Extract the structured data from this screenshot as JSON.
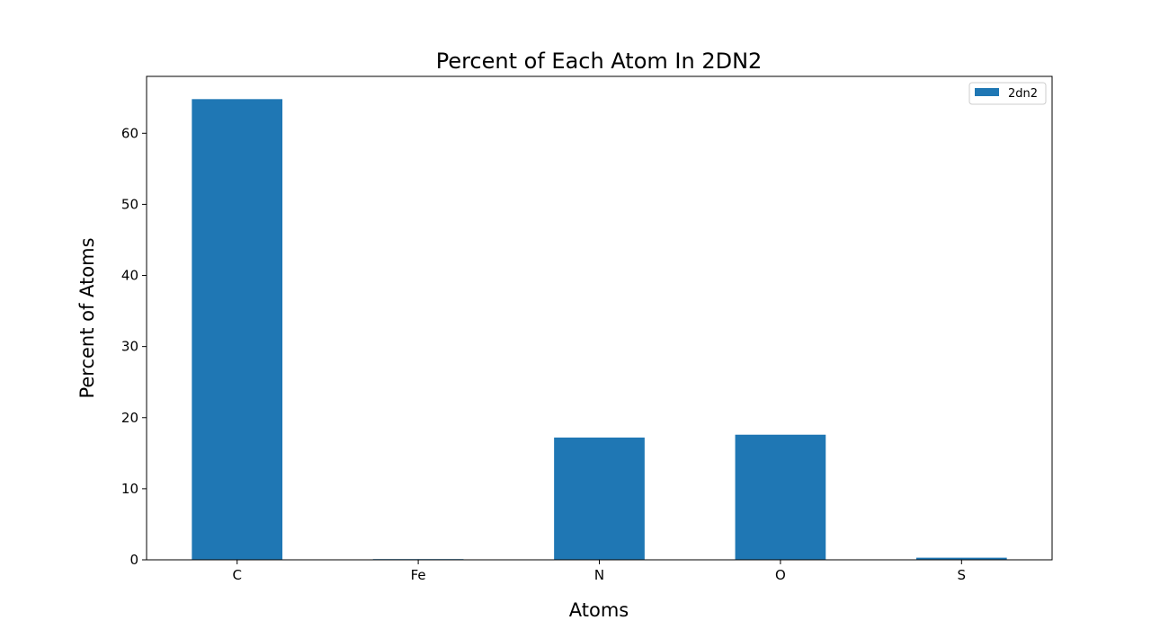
{
  "chart_data": {
    "type": "bar",
    "title": "Percent of Each Atom In 2DN2",
    "xlabel": "Atoms",
    "ylabel": "Percent of Atoms",
    "categories": [
      "C",
      "Fe",
      "N",
      "O",
      "S"
    ],
    "series": [
      {
        "name": "2dn2",
        "color": "#1f77b4",
        "values": [
          64.8,
          0.1,
          17.2,
          17.6,
          0.3
        ]
      }
    ],
    "ylim": [
      0,
      68
    ],
    "yticks": [
      0,
      10,
      20,
      30,
      40,
      50,
      60
    ],
    "grid": false,
    "legend_position": "top-right"
  }
}
